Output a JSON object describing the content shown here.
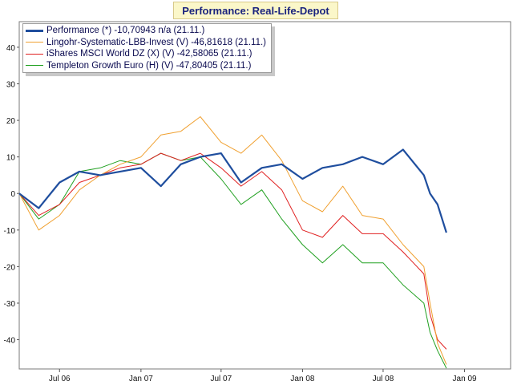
{
  "chart_data": {
    "type": "line",
    "title": "Performance: Real-Life-Depot",
    "xlabel": "",
    "ylabel": "",
    "x_ticks": [
      "Jul 06",
      "Jan 07",
      "Jul 07",
      "Jan 08",
      "Jul 08",
      "Jan 09"
    ],
    "y_ticks": [
      40,
      30,
      20,
      10,
      0,
      -10,
      -20,
      -30,
      -40
    ],
    "ylim": [
      -48,
      47
    ],
    "xlim": [
      "2006-04-01",
      "2009-04-15"
    ],
    "grid": true,
    "legend_position": "top-left",
    "x": [
      "2006-04-01",
      "2006-05-15",
      "2006-07-01",
      "2006-08-15",
      "2006-10-01",
      "2006-11-15",
      "2007-01-01",
      "2007-02-15",
      "2007-04-01",
      "2007-05-15",
      "2007-07-01",
      "2007-08-15",
      "2007-10-01",
      "2007-11-15",
      "2008-01-01",
      "2008-02-15",
      "2008-04-01",
      "2008-05-15",
      "2008-07-01",
      "2008-08-15",
      "2008-10-01",
      "2008-10-15",
      "2008-11-01",
      "2008-11-21"
    ],
    "series": [
      {
        "name": "Performance (*) -10,70943 n/a (21.11.)",
        "color": "#1f4e9e",
        "values": [
          0,
          -4,
          3,
          6,
          5,
          6,
          7,
          2,
          8,
          10,
          11,
          3,
          7,
          8,
          4,
          7,
          8,
          10,
          8,
          12,
          5,
          0,
          -3,
          -10.7
        ]
      },
      {
        "name": "Lingohr-Systematic-LBB-Invest (V) -46,81618 (21.11.)",
        "color": "#f0a030",
        "values": [
          0,
          -10,
          -6,
          1,
          5,
          8,
          10,
          16,
          17,
          21,
          14,
          11,
          16,
          9,
          -2,
          -5,
          2,
          -6,
          -7,
          -14,
          -20,
          -30,
          -41,
          -46.8
        ]
      },
      {
        "name": "iShares MSCI World DZ (X) (V) -42,58065 (21.11.)",
        "color": "#e02020",
        "values": [
          0,
          -6,
          -3,
          3,
          5,
          7,
          8,
          11,
          9,
          11,
          7,
          2,
          6,
          1,
          -10,
          -12,
          -6,
          -11,
          -11,
          -16,
          -22,
          -33,
          -40,
          -42.6
        ]
      },
      {
        "name": "Templeton Growth Euro (H) (V) -47,80405 (21.11.)",
        "color": "#20a020",
        "values": [
          0,
          -7,
          -3,
          6,
          7,
          9,
          8,
          11,
          9,
          10,
          4,
          -3,
          1,
          -7,
          -14,
          -19,
          -14,
          -19,
          -19,
          -25,
          -30,
          -38,
          -43,
          -47.8
        ]
      }
    ]
  }
}
